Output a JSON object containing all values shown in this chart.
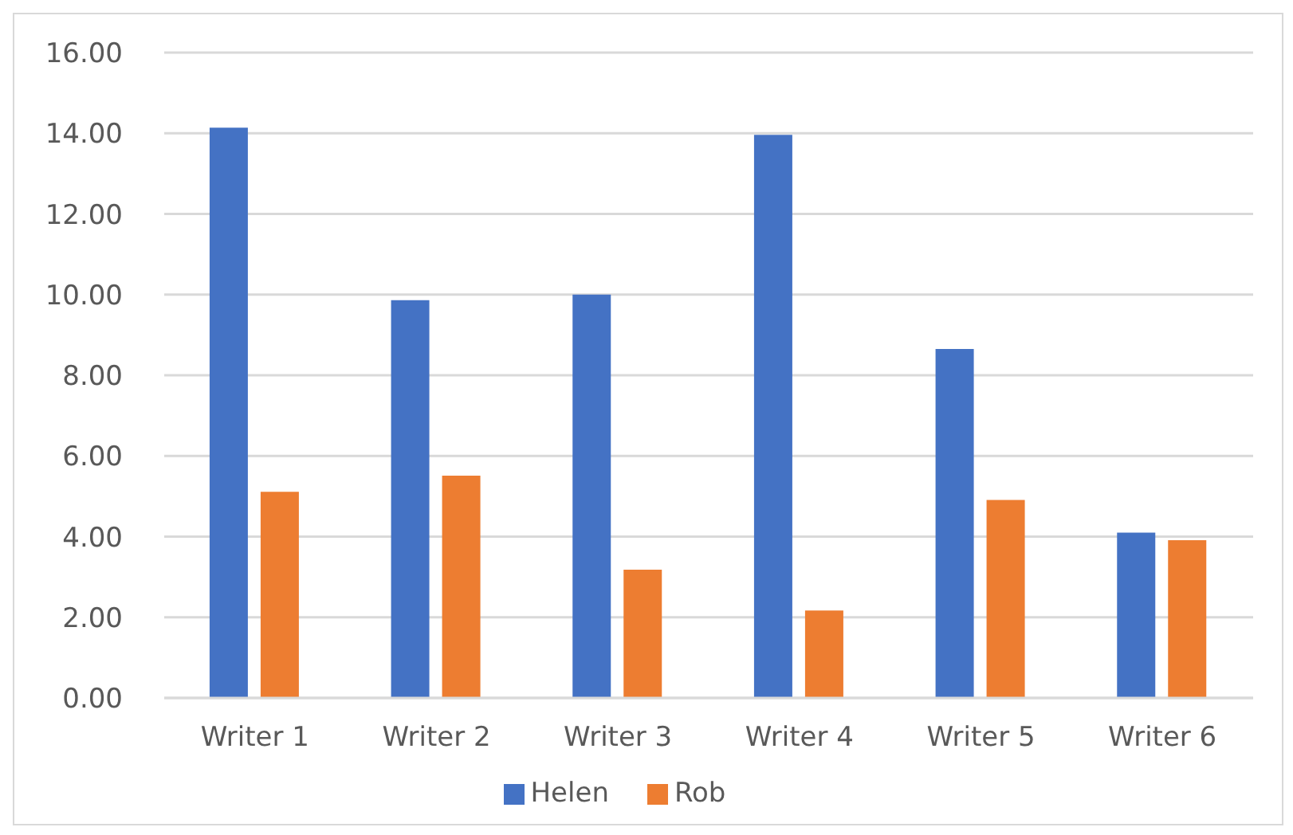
{
  "chart_data": {
    "type": "bar",
    "categories": [
      "Writer 1",
      "Writer 2",
      "Writer 3",
      "Writer 4",
      "Writer 5",
      "Writer 6"
    ],
    "series": [
      {
        "name": "Helen",
        "color": "#4472c4",
        "values": [
          14.14,
          9.86,
          10.0,
          13.96,
          8.65,
          4.1
        ]
      },
      {
        "name": "Rob",
        "color": "#ed7d31",
        "values": [
          5.11,
          5.51,
          3.18,
          2.17,
          4.91,
          3.91
        ]
      }
    ],
    "ylim": [
      0,
      16
    ],
    "yticks": [
      {
        "value": 0,
        "label": "0.00"
      },
      {
        "value": 2,
        "label": "2.00"
      },
      {
        "value": 4,
        "label": "4.00"
      },
      {
        "value": 6,
        "label": "6.00"
      },
      {
        "value": 8,
        "label": "8.00"
      },
      {
        "value": 10,
        "label": "10.00"
      },
      {
        "value": 12,
        "label": "12.00"
      },
      {
        "value": 14,
        "label": "14.00"
      },
      {
        "value": 16,
        "label": "16.00"
      }
    ],
    "grid": "y",
    "legend": "bottom"
  }
}
